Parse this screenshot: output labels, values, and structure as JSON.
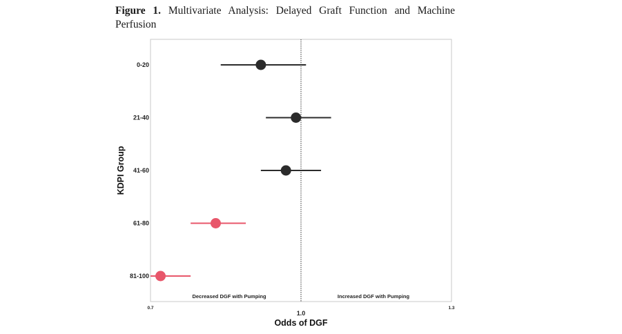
{
  "caption": {
    "label": "Figure 1.",
    "text": "Multivariate Analysis: Delayed Graft Function and Machine Perfusion"
  },
  "chart_data": {
    "type": "forest",
    "xlabel": "Odds of DGF",
    "ylabel": "KDPI Group",
    "xlim": [
      0.7,
      1.3
    ],
    "x_ticks": [
      "0.7",
      "1.0",
      "1.3"
    ],
    "reference_line": 1.0,
    "grid": false,
    "annotations": {
      "left": "Decreased DGF with Pumping",
      "right": "Increased DGF with Pumping"
    },
    "categories": [
      "0-20",
      "21-40",
      "41-60",
      "61-80",
      "81-100"
    ],
    "points": [
      {
        "group": "0-20",
        "estimate": 0.92,
        "lower": 0.84,
        "upper": 1.01,
        "color": "#2b2b2b"
      },
      {
        "group": "21-40",
        "estimate": 0.99,
        "lower": 0.93,
        "upper": 1.06,
        "color": "#2b2b2b"
      },
      {
        "group": "41-60",
        "estimate": 0.97,
        "lower": 0.92,
        "upper": 1.04,
        "color": "#2b2b2b"
      },
      {
        "group": "61-80",
        "estimate": 0.83,
        "lower": 0.78,
        "upper": 0.89,
        "color": "#e8566a"
      },
      {
        "group": "81-100",
        "estimate": 0.72,
        "lower": 0.7,
        "upper": 0.78,
        "color": "#e8566a"
      }
    ]
  }
}
